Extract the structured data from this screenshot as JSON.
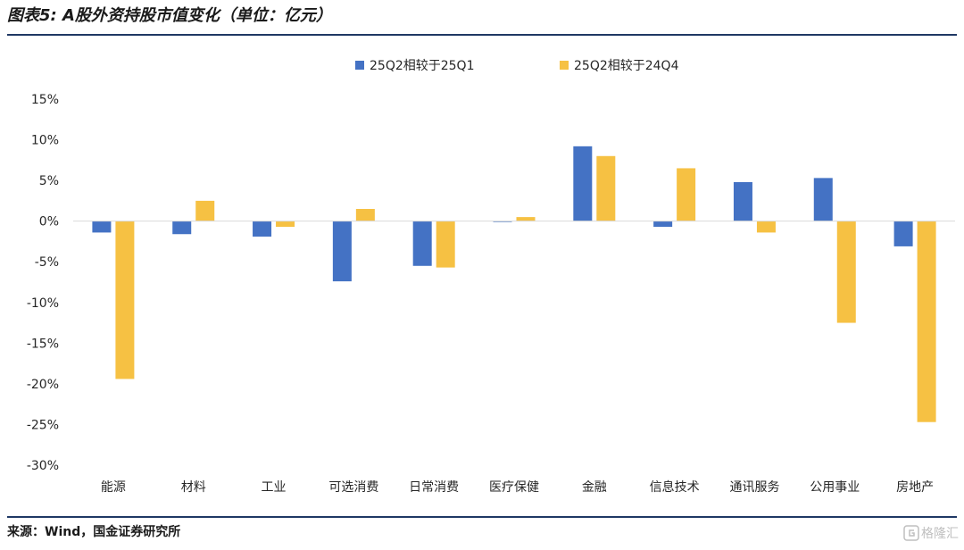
{
  "header": {
    "title": "图表5: A股外资持股市值变化（单位：亿元）"
  },
  "footer": {
    "source": "来源：Wind，国金证券研究所",
    "watermark": "格隆汇"
  },
  "chart_data": {
    "type": "bar",
    "title": "图表5: A股外资持股市值变化（单位：亿元）",
    "xlabel": "",
    "ylabel": "",
    "categories": [
      "能源",
      "材料",
      "工业",
      "可选消费",
      "日常消费",
      "医疗保健",
      "金融",
      "信息技术",
      "通讯服务",
      "公用事业",
      "房地产"
    ],
    "series": [
      {
        "name": "25Q2相较于25Q1",
        "color": "#4472c4",
        "values": [
          -1.4,
          -1.6,
          -1.9,
          -7.4,
          -5.5,
          -0.1,
          9.2,
          -0.7,
          4.8,
          5.3,
          -3.1
        ]
      },
      {
        "name": "25Q2相较于24Q4",
        "color": "#f6c143",
        "values": [
          -19.4,
          2.5,
          -0.7,
          1.5,
          -5.7,
          0.5,
          8.0,
          6.5,
          -1.4,
          -12.5,
          -24.7
        ]
      }
    ],
    "ylim": [
      -30,
      15
    ],
    "yticks": [
      15,
      10,
      5,
      0,
      -5,
      -10,
      -15,
      -20,
      -25,
      -30
    ],
    "ytick_labels": [
      "15%",
      "10%",
      "5%",
      "0%",
      "-5%",
      "-10%",
      "-15%",
      "-20%",
      "-25%",
      "-30%"
    ],
    "legend_position": "top-center",
    "grid": false
  }
}
